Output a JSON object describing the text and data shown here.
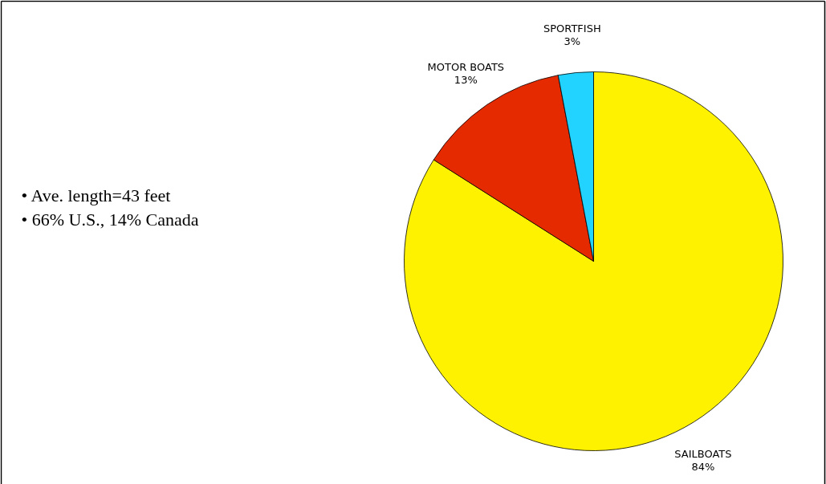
{
  "chart_data": {
    "type": "pie",
    "categories": [
      "SAILBOATS",
      "MOTOR BOATS",
      "SPORTFISH"
    ],
    "values": [
      84,
      13,
      3
    ],
    "colors": [
      "#fff200",
      "#e62a00",
      "#22d3ff"
    ],
    "value_labels": [
      "84%",
      "13%",
      "3%"
    ],
    "annotations": [
      "•   Ave. length=43 feet",
      "•   66% U.S., 14% Canada"
    ]
  }
}
